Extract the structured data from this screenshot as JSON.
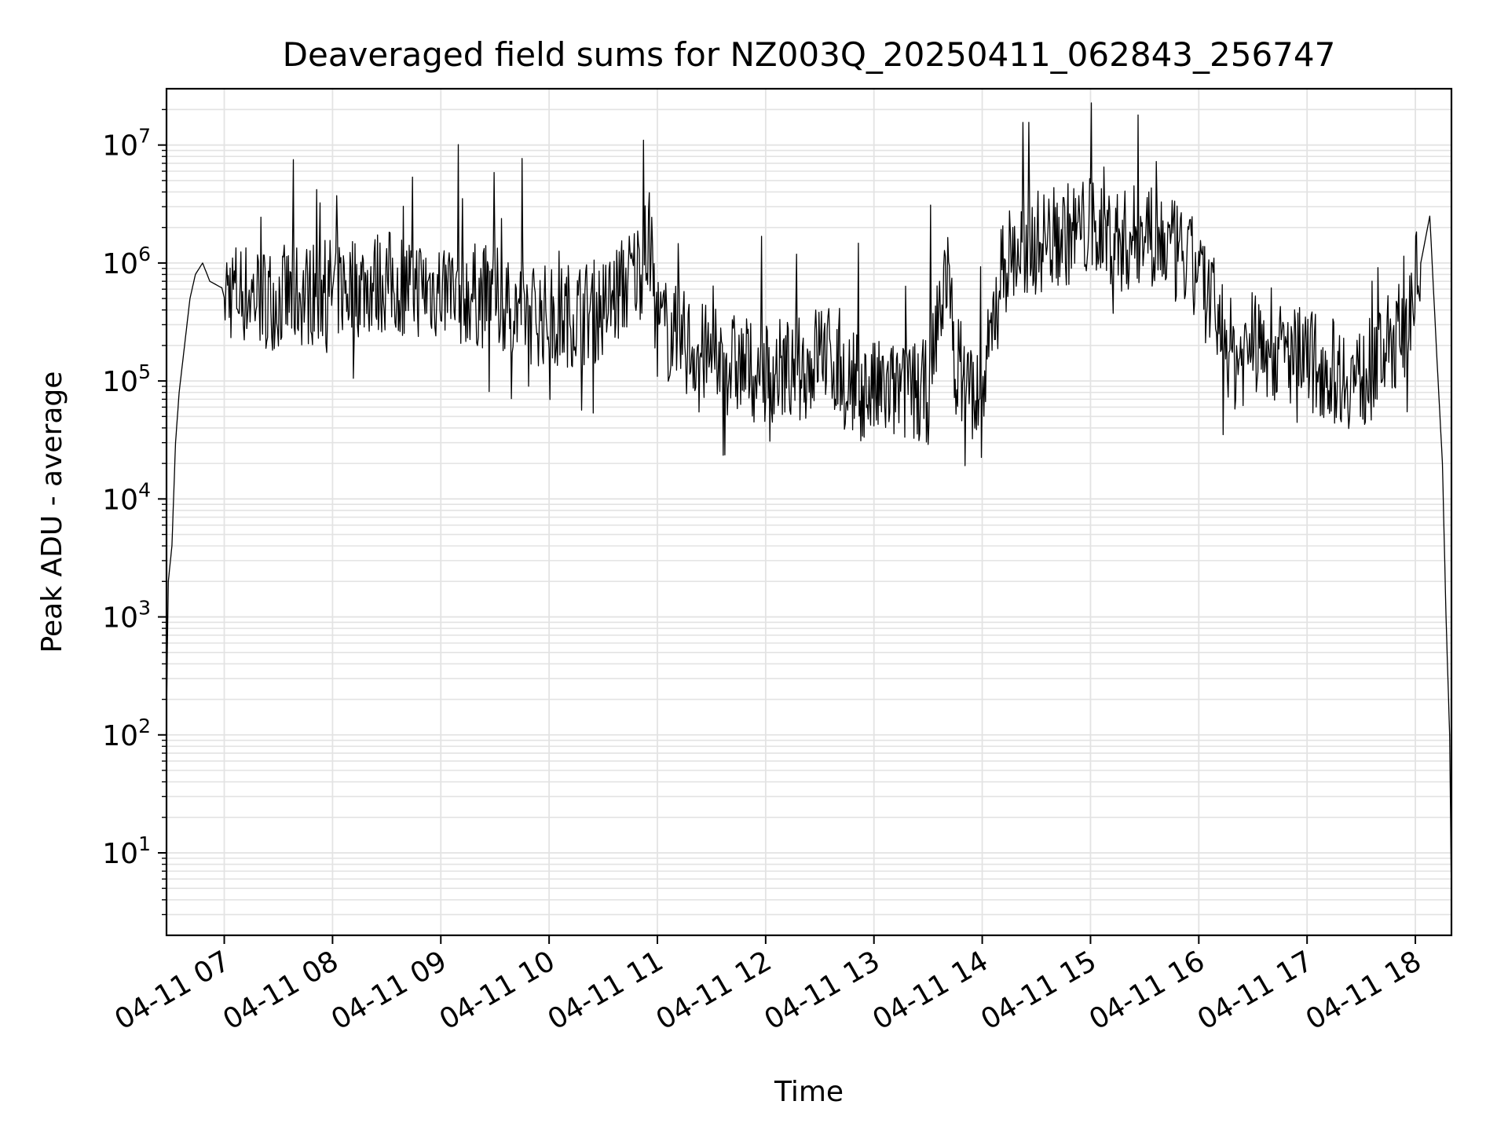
{
  "chart_data": {
    "type": "line",
    "title": "Deaveraged field sums for NZ003Q_20250411_062843_256747",
    "xlabel": "Time",
    "ylabel": "Peak ADU - average",
    "yscale": "log",
    "ylim": [
      2,
      30000000
    ],
    "xlim": [
      "04-11 06:28",
      "04-11 18:20"
    ],
    "grid": true,
    "x_ticks": [
      "04-11 07",
      "04-11 08",
      "04-11 09",
      "04-11 10",
      "04-11 11",
      "04-11 12",
      "04-11 13",
      "04-11 14",
      "04-11 15",
      "04-11 16",
      "04-11 17",
      "04-11 18"
    ],
    "y_ticks": [
      {
        "value": 10,
        "base": "10",
        "exp": "1"
      },
      {
        "value": 100,
        "base": "10",
        "exp": "2"
      },
      {
        "value": 1000,
        "base": "10",
        "exp": "3"
      },
      {
        "value": 10000,
        "base": "10",
        "exp": "4"
      },
      {
        "value": 100000,
        "base": "10",
        "exp": "5"
      },
      {
        "value": 1000000,
        "base": "10",
        "exp": "6"
      },
      {
        "value": 10000000,
        "base": "10",
        "exp": "7"
      }
    ],
    "line_color": "#000000",
    "grid_color": "#e3e3e3",
    "series": [
      {
        "x": [
          "04-11 06:28",
          "04-11 06:29",
          "04-11 06:31",
          "04-11 06:33",
          "04-11 06:35",
          "04-11 06:38",
          "04-11 06:41",
          "04-11 06:44",
          "04-11 06:48",
          "04-11 06:52",
          "04-11 07:00",
          "04-11 07:30",
          "04-11 08:00",
          "04-11 08:30",
          "04-11 09:00",
          "04-11 09:30",
          "04-11 09:45",
          "04-11 10:00",
          "04-11 10:30",
          "04-11 10:50",
          "04-11 10:56",
          "04-11 11:00",
          "04-11 11:30",
          "04-11 12:00",
          "04-11 12:25",
          "04-11 12:30",
          "04-11 12:45",
          "04-11 13:00",
          "04-11 13:30",
          "04-11 13:40",
          "04-11 13:45",
          "04-11 14:00",
          "04-11 14:10",
          "04-11 14:30",
          "04-11 15:00",
          "04-11 15:20",
          "04-11 15:30",
          "04-11 16:00",
          "04-11 16:20",
          "04-11 16:30",
          "04-11 17:00",
          "04-11 17:30",
          "04-11 17:55",
          "04-11 18:03",
          "04-11 18:08",
          "04-11 18:12",
          "04-11 18:15",
          "04-11 18:17",
          "04-11 18:19",
          "04-11 18:20"
        ],
        "y": [
          150,
          2000,
          4000,
          30000,
          80000,
          200000,
          500000,
          800000,
          1000000,
          700000,
          600000,
          500000,
          600000,
          700000,
          600000,
          500000,
          400000,
          350000,
          400000,
          900000,
          1500000,
          300000,
          150000,
          120000,
          130000,
          200000,
          100000,
          80000,
          80000,
          1000000,
          150000,
          60000,
          1000000,
          1500000,
          2000000,
          1500000,
          2000000,
          800000,
          150000,
          200000,
          150000,
          100000,
          300000,
          1000000,
          2500000,
          150000,
          20000,
          1000,
          100,
          4
        ]
      }
    ]
  }
}
